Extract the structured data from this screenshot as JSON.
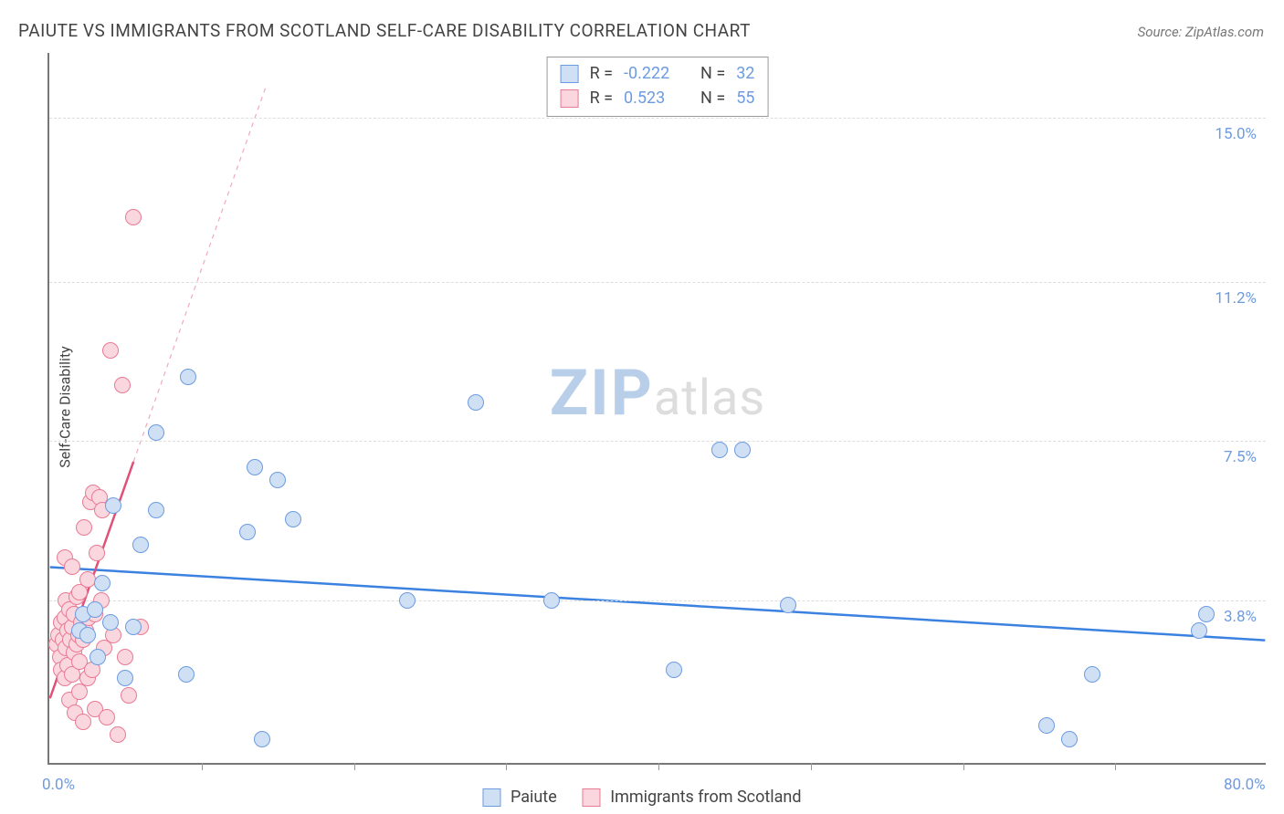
{
  "title": "PAIUTE VS IMMIGRANTS FROM SCOTLAND SELF-CARE DISABILITY CORRELATION CHART",
  "source_label": "Source: ZipAtlas.com",
  "y_axis_label": "Self-Care Disability",
  "watermark": {
    "zip": "ZIP",
    "atlas": "atlas"
  },
  "chart": {
    "type": "scatter",
    "background_color": "#ffffff",
    "grid_color": "#dddddd",
    "axis_color": "#777777",
    "tick_label_color": "#6d9be0",
    "xlim": [
      0.0,
      80.0
    ],
    "ylim": [
      0.0,
      16.5
    ],
    "x_ticks_minor": [
      10,
      20,
      30,
      40,
      50,
      60,
      70
    ],
    "x_tick_labels": {
      "0": "0.0%",
      "80": "80.0%"
    },
    "y_ticks": [
      {
        "value": 3.8,
        "label": "3.8%"
      },
      {
        "value": 7.5,
        "label": "7.5%"
      },
      {
        "value": 11.2,
        "label": "11.2%"
      },
      {
        "value": 15.0,
        "label": "15.0%"
      }
    ],
    "marker_radius": 9,
    "marker_border_width": 1,
    "series": [
      {
        "name": "Paiute",
        "fill_color": "#cfe0f5",
        "border_color": "#6d9be0",
        "r_value": "-0.222",
        "n_value": "32",
        "trend": {
          "x1": 0,
          "y1": 4.55,
          "x2": 80,
          "y2": 2.85,
          "color": "#3b82e0",
          "width": 2.5,
          "dash": ""
        },
        "points": [
          [
            2.0,
            3.1
          ],
          [
            2.2,
            3.5
          ],
          [
            2.5,
            3.0
          ],
          [
            3.0,
            3.6
          ],
          [
            3.2,
            2.5
          ],
          [
            3.5,
            4.2
          ],
          [
            4.0,
            3.3
          ],
          [
            4.2,
            6.0
          ],
          [
            5.0,
            2.0
          ],
          [
            5.5,
            3.2
          ],
          [
            6.0,
            5.1
          ],
          [
            7.0,
            7.7
          ],
          [
            7.0,
            5.9
          ],
          [
            9.0,
            2.1
          ],
          [
            9.1,
            9.0
          ],
          [
            13.0,
            5.4
          ],
          [
            13.5,
            6.9
          ],
          [
            14.0,
            0.6
          ],
          [
            15.0,
            6.6
          ],
          [
            16.0,
            5.7
          ],
          [
            23.5,
            3.8
          ],
          [
            28.0,
            8.4
          ],
          [
            33.0,
            3.8
          ],
          [
            41.0,
            2.2
          ],
          [
            44.0,
            7.3
          ],
          [
            45.5,
            7.3
          ],
          [
            48.5,
            3.7
          ],
          [
            65.5,
            0.9
          ],
          [
            67.0,
            0.6
          ],
          [
            68.5,
            2.1
          ],
          [
            75.5,
            3.1
          ],
          [
            76.0,
            3.5
          ]
        ]
      },
      {
        "name": "Immigrants from Scotland",
        "fill_color": "#fad7de",
        "border_color": "#e97a94",
        "r_value": "0.523",
        "n_value": "55",
        "trend": {
          "x1": 0,
          "y1": 1.5,
          "x2": 5.5,
          "y2": 7.0,
          "color": "#e05078",
          "width": 2.5,
          "dash": ""
        },
        "trend_extension": {
          "x1": 5.5,
          "y1": 7.0,
          "x2": 14.2,
          "y2": 15.7,
          "color": "#f2a9b9",
          "width": 1.2,
          "dash": "5,5"
        },
        "points": [
          [
            0.5,
            2.8
          ],
          [
            0.6,
            3.0
          ],
          [
            0.7,
            2.5
          ],
          [
            0.8,
            3.3
          ],
          [
            0.8,
            2.2
          ],
          [
            0.9,
            2.9
          ],
          [
            1.0,
            3.4
          ],
          [
            1.0,
            2.0
          ],
          [
            1.0,
            4.8
          ],
          [
            1.1,
            2.7
          ],
          [
            1.1,
            3.8
          ],
          [
            1.2,
            3.1
          ],
          [
            1.2,
            2.3
          ],
          [
            1.3,
            1.5
          ],
          [
            1.3,
            3.6
          ],
          [
            1.4,
            2.9
          ],
          [
            1.5,
            4.6
          ],
          [
            1.5,
            2.1
          ],
          [
            1.5,
            3.2
          ],
          [
            1.6,
            3.5
          ],
          [
            1.6,
            2.6
          ],
          [
            1.7,
            1.2
          ],
          [
            1.8,
            2.8
          ],
          [
            1.8,
            3.9
          ],
          [
            1.9,
            3.0
          ],
          [
            2.0,
            1.7
          ],
          [
            2.0,
            4.0
          ],
          [
            2.0,
            2.4
          ],
          [
            2.1,
            3.3
          ],
          [
            2.2,
            2.9
          ],
          [
            2.2,
            1.0
          ],
          [
            2.3,
            5.5
          ],
          [
            2.4,
            3.1
          ],
          [
            2.5,
            2.0
          ],
          [
            2.5,
            4.3
          ],
          [
            2.6,
            3.4
          ],
          [
            2.7,
            6.1
          ],
          [
            2.8,
            2.2
          ],
          [
            2.9,
            6.3
          ],
          [
            3.0,
            3.5
          ],
          [
            3.0,
            1.3
          ],
          [
            3.1,
            4.9
          ],
          [
            3.3,
            6.2
          ],
          [
            3.5,
            5.9
          ],
          [
            3.6,
            2.7
          ],
          [
            3.8,
            1.1
          ],
          [
            4.0,
            9.6
          ],
          [
            4.2,
            3.0
          ],
          [
            4.5,
            0.7
          ],
          [
            4.8,
            8.8
          ],
          [
            5.2,
            1.6
          ],
          [
            5.5,
            12.7
          ],
          [
            6.0,
            3.2
          ],
          [
            5.0,
            2.5
          ],
          [
            3.4,
            3.8
          ]
        ]
      }
    ]
  },
  "legend": {
    "series1_label": "Paiute",
    "series2_label": "Immigrants from Scotland",
    "r_label": "R =",
    "n_label": "N ="
  }
}
